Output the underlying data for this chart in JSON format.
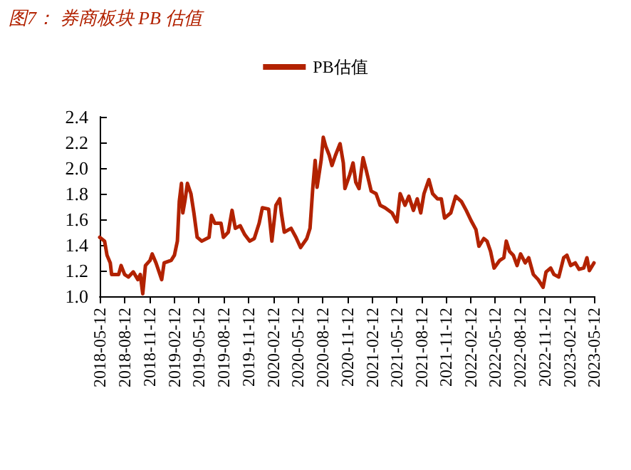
{
  "chart_data": {
    "type": "line",
    "title": "图7：  券商板块 PB 估值",
    "legend": "top",
    "grid": false,
    "marker": "none",
    "line_style": "solid",
    "ylim": [
      1.0,
      2.4
    ],
    "yticks": [
      {
        "value": 1.0,
        "label": "1.0"
      },
      1.2,
      1.4,
      1.6,
      1.8,
      {
        "value": 2.0,
        "label": "2.0"
      },
      2.2,
      2.4
    ],
    "xlim": [
      "2018-05-12",
      "2023-05-12"
    ],
    "xticks": [
      "2018-05-12",
      "2018-08-12",
      "2018-11-12",
      "2019-02-12",
      "2019-05-12",
      "2019-08-12",
      "2019-11-12",
      "2020-02-12",
      "2020-05-12",
      "2020-08-12",
      "2020-11-12",
      "2021-02-12",
      "2021-05-12",
      "2021-08-12",
      "2021-11-12",
      "2022-02-12",
      "2022-05-12",
      "2022-08-12",
      "2022-11-12",
      "2023-02-12",
      "2023-05-12"
    ],
    "series": [
      {
        "name": "PB估值",
        "color": "#b22200",
        "x": [
          "2018-05-12",
          "2018-05-30",
          "2018-06-08",
          "2018-06-20",
          "2018-06-25",
          "2018-07-21",
          "2018-07-30",
          "2018-08-12",
          "2018-08-26",
          "2018-09-13",
          "2018-09-30",
          "2018-10-09",
          "2018-10-18",
          "2018-10-28",
          "2018-11-14",
          "2018-11-22",
          "2018-12-06",
          "2018-12-27",
          "2019-01-05",
          "2019-01-31",
          "2019-02-12",
          "2019-02-23",
          "2019-03-02",
          "2019-03-10",
          "2019-03-15",
          "2019-03-24",
          "2019-04-01",
          "2019-04-14",
          "2019-04-25",
          "2019-05-07",
          "2019-05-24",
          "2019-06-20",
          "2019-06-29",
          "2019-07-11",
          "2019-08-03",
          "2019-08-12",
          "2019-08-30",
          "2019-09-13",
          "2019-09-25",
          "2019-10-13",
          "2019-10-30",
          "2019-11-17",
          "2019-12-04",
          "2019-12-22",
          "2020-01-03",
          "2020-01-26",
          "2020-02-07",
          "2020-02-22",
          "2020-03-07",
          "2020-03-13",
          "2020-03-24",
          "2020-04-18",
          "2020-05-06",
          "2020-05-23",
          "2020-06-15",
          "2020-06-27",
          "2020-07-07",
          "2020-07-16",
          "2020-07-23",
          "2020-08-07",
          "2020-08-15",
          "2020-08-24",
          "2020-09-06",
          "2020-09-16",
          "2020-09-29",
          "2020-10-16",
          "2020-10-28",
          "2020-11-03",
          "2020-11-21",
          "2020-12-03",
          "2020-12-13",
          "2020-12-25",
          "2021-01-09",
          "2021-01-21",
          "2021-02-08",
          "2021-02-26",
          "2021-03-13",
          "2021-03-31",
          "2021-04-26",
          "2021-05-14",
          "2021-05-26",
          "2021-06-13",
          "2021-06-27",
          "2021-07-14",
          "2021-07-28",
          "2021-08-10",
          "2021-08-22",
          "2021-09-09",
          "2021-09-23",
          "2021-10-11",
          "2021-10-25",
          "2021-11-06",
          "2021-11-29",
          "2021-12-17",
          "2022-01-07",
          "2022-01-25",
          "2022-02-12",
          "2022-03-02",
          "2022-03-13",
          "2022-03-31",
          "2022-04-12",
          "2022-04-25",
          "2022-05-08",
          "2022-05-29",
          "2022-06-13",
          "2022-06-22",
          "2022-07-04",
          "2022-07-18",
          "2022-08-01",
          "2022-08-14",
          "2022-08-31",
          "2022-09-13",
          "2022-09-30",
          "2022-10-18",
          "2022-11-05",
          "2022-11-16",
          "2022-12-03",
          "2022-12-15",
          "2023-01-02",
          "2023-01-20",
          "2023-02-01",
          "2023-02-15",
          "2023-03-04",
          "2023-03-18",
          "2023-04-04",
          "2023-04-16",
          "2023-04-25",
          "2023-05-12"
        ],
        "values": [
          1.46,
          1.43,
          1.32,
          1.26,
          1.17,
          1.17,
          1.24,
          1.17,
          1.15,
          1.19,
          1.13,
          1.17,
          1.02,
          1.24,
          1.28,
          1.33,
          1.26,
          1.13,
          1.26,
          1.28,
          1.32,
          1.43,
          1.74,
          1.88,
          1.65,
          1.76,
          1.88,
          1.8,
          1.65,
          1.46,
          1.43,
          1.46,
          1.63,
          1.57,
          1.57,
          1.46,
          1.5,
          1.67,
          1.53,
          1.55,
          1.48,
          1.43,
          1.45,
          1.57,
          1.69,
          1.68,
          1.43,
          1.71,
          1.76,
          1.65,
          1.5,
          1.53,
          1.46,
          1.38,
          1.45,
          1.53,
          1.84,
          2.06,
          1.85,
          2.06,
          2.24,
          2.17,
          2.1,
          2.02,
          2.1,
          2.19,
          2.04,
          1.84,
          1.95,
          2.04,
          1.89,
          1.84,
          2.08,
          1.98,
          1.82,
          1.8,
          1.71,
          1.69,
          1.65,
          1.58,
          1.8,
          1.71,
          1.78,
          1.67,
          1.76,
          1.65,
          1.8,
          1.91,
          1.8,
          1.76,
          1.76,
          1.61,
          1.65,
          1.78,
          1.74,
          1.67,
          1.59,
          1.52,
          1.39,
          1.45,
          1.43,
          1.35,
          1.22,
          1.28,
          1.3,
          1.43,
          1.35,
          1.32,
          1.24,
          1.33,
          1.26,
          1.3,
          1.17,
          1.13,
          1.07,
          1.19,
          1.22,
          1.17,
          1.15,
          1.3,
          1.32,
          1.24,
          1.26,
          1.21,
          1.22,
          1.3,
          1.2,
          1.26
        ]
      }
    ]
  }
}
